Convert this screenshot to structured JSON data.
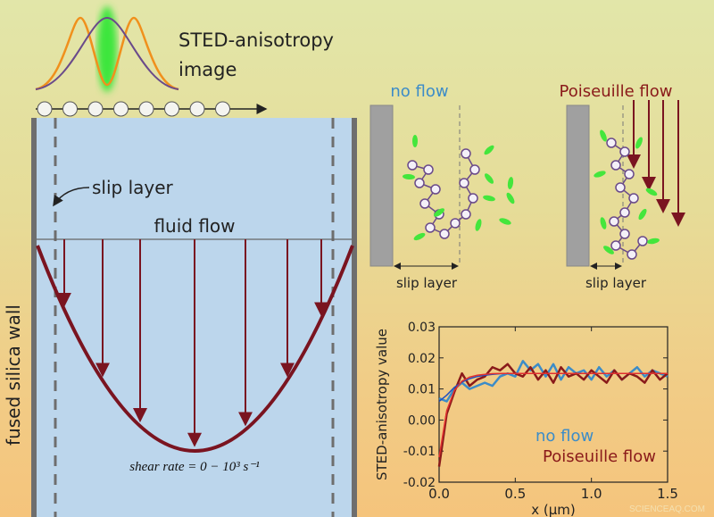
{
  "labels": {
    "sted_title_1": "STED-anisotropy",
    "sted_title_2": "image",
    "slip_layer": "slip layer",
    "fluid_flow": "fluid flow",
    "wall": "fused silica wall",
    "shear_rate": "shear rate = 0 − 10³ s⁻¹",
    "no_flow_title": "no flow",
    "poiseuille_title": "Poiseuille flow",
    "slip_layer_left": "slip layer",
    "slip_layer_right": "slip layer",
    "watermark": "SCIENCEAQ.COM"
  },
  "colors": {
    "fluid": "#bcd6ec",
    "wall": "#6e6e6e",
    "flow_arrow": "#7a1420",
    "no_flow": "#3c8cc8",
    "poiseuille": "#8a1a1a",
    "dye": "#44e63c",
    "polymer": "#6a4a8a"
  },
  "chart_data": {
    "type": "line",
    "xlabel": "x (µm)",
    "ylabel": "STED-anisotropy value",
    "xlim": [
      0,
      1.5
    ],
    "ylim": [
      -0.02,
      0.03
    ],
    "xticks": [
      "0.0",
      "0.5",
      "1.0",
      "1.5"
    ],
    "yticks": [
      "-0.02",
      "-0.01",
      "0.00",
      "0.01",
      "0.02",
      "0.03"
    ],
    "legend": "bottom-right",
    "x": [
      0,
      0.05,
      0.1,
      0.15,
      0.2,
      0.25,
      0.3,
      0.35,
      0.4,
      0.45,
      0.5,
      0.55,
      0.6,
      0.65,
      0.7,
      0.75,
      0.8,
      0.85,
      0.9,
      0.95,
      1.0,
      1.05,
      1.1,
      1.15,
      1.2,
      1.25,
      1.3,
      1.35,
      1.4,
      1.45,
      1.5
    ],
    "series": [
      {
        "name": "no flow",
        "color": "#3c8cc8",
        "values": [
          0.007,
          0.006,
          0.01,
          0.012,
          0.01,
          0.011,
          0.012,
          0.011,
          0.014,
          0.015,
          0.014,
          0.019,
          0.016,
          0.018,
          0.014,
          0.018,
          0.013,
          0.017,
          0.015,
          0.016,
          0.013,
          0.017,
          0.014,
          0.016,
          0.013,
          0.015,
          0.017,
          0.014,
          0.016,
          0.015,
          0.014
        ],
        "fit": [
          0.006,
          0.008,
          0.0105,
          0.0122,
          0.0133,
          0.014,
          0.0144,
          0.0147,
          0.0149,
          0.015,
          0.015,
          0.015,
          0.015,
          0.015,
          0.015,
          0.015,
          0.015,
          0.015,
          0.015,
          0.015,
          0.015,
          0.015,
          0.015,
          0.015,
          0.015,
          0.015,
          0.015,
          0.015,
          0.015,
          0.015,
          0.015
        ]
      },
      {
        "name": "Poiseuille flow",
        "color": "#8a1a1a",
        "values": [
          -0.015,
          0.002,
          0.009,
          0.015,
          0.011,
          0.013,
          0.014,
          0.017,
          0.016,
          0.018,
          0.015,
          0.014,
          0.017,
          0.013,
          0.016,
          0.012,
          0.017,
          0.014,
          0.015,
          0.013,
          0.016,
          0.014,
          0.012,
          0.016,
          0.013,
          0.015,
          0.014,
          0.012,
          0.016,
          0.013,
          0.015
        ],
        "fit": [
          -0.012,
          0.003,
          0.0095,
          0.0125,
          0.0138,
          0.0144,
          0.0147,
          0.0149,
          0.015,
          0.015,
          0.015,
          0.015,
          0.015,
          0.015,
          0.015,
          0.015,
          0.015,
          0.015,
          0.015,
          0.015,
          0.015,
          0.015,
          0.015,
          0.015,
          0.015,
          0.015,
          0.015,
          0.015,
          0.015,
          0.015,
          0.015
        ]
      }
    ]
  }
}
